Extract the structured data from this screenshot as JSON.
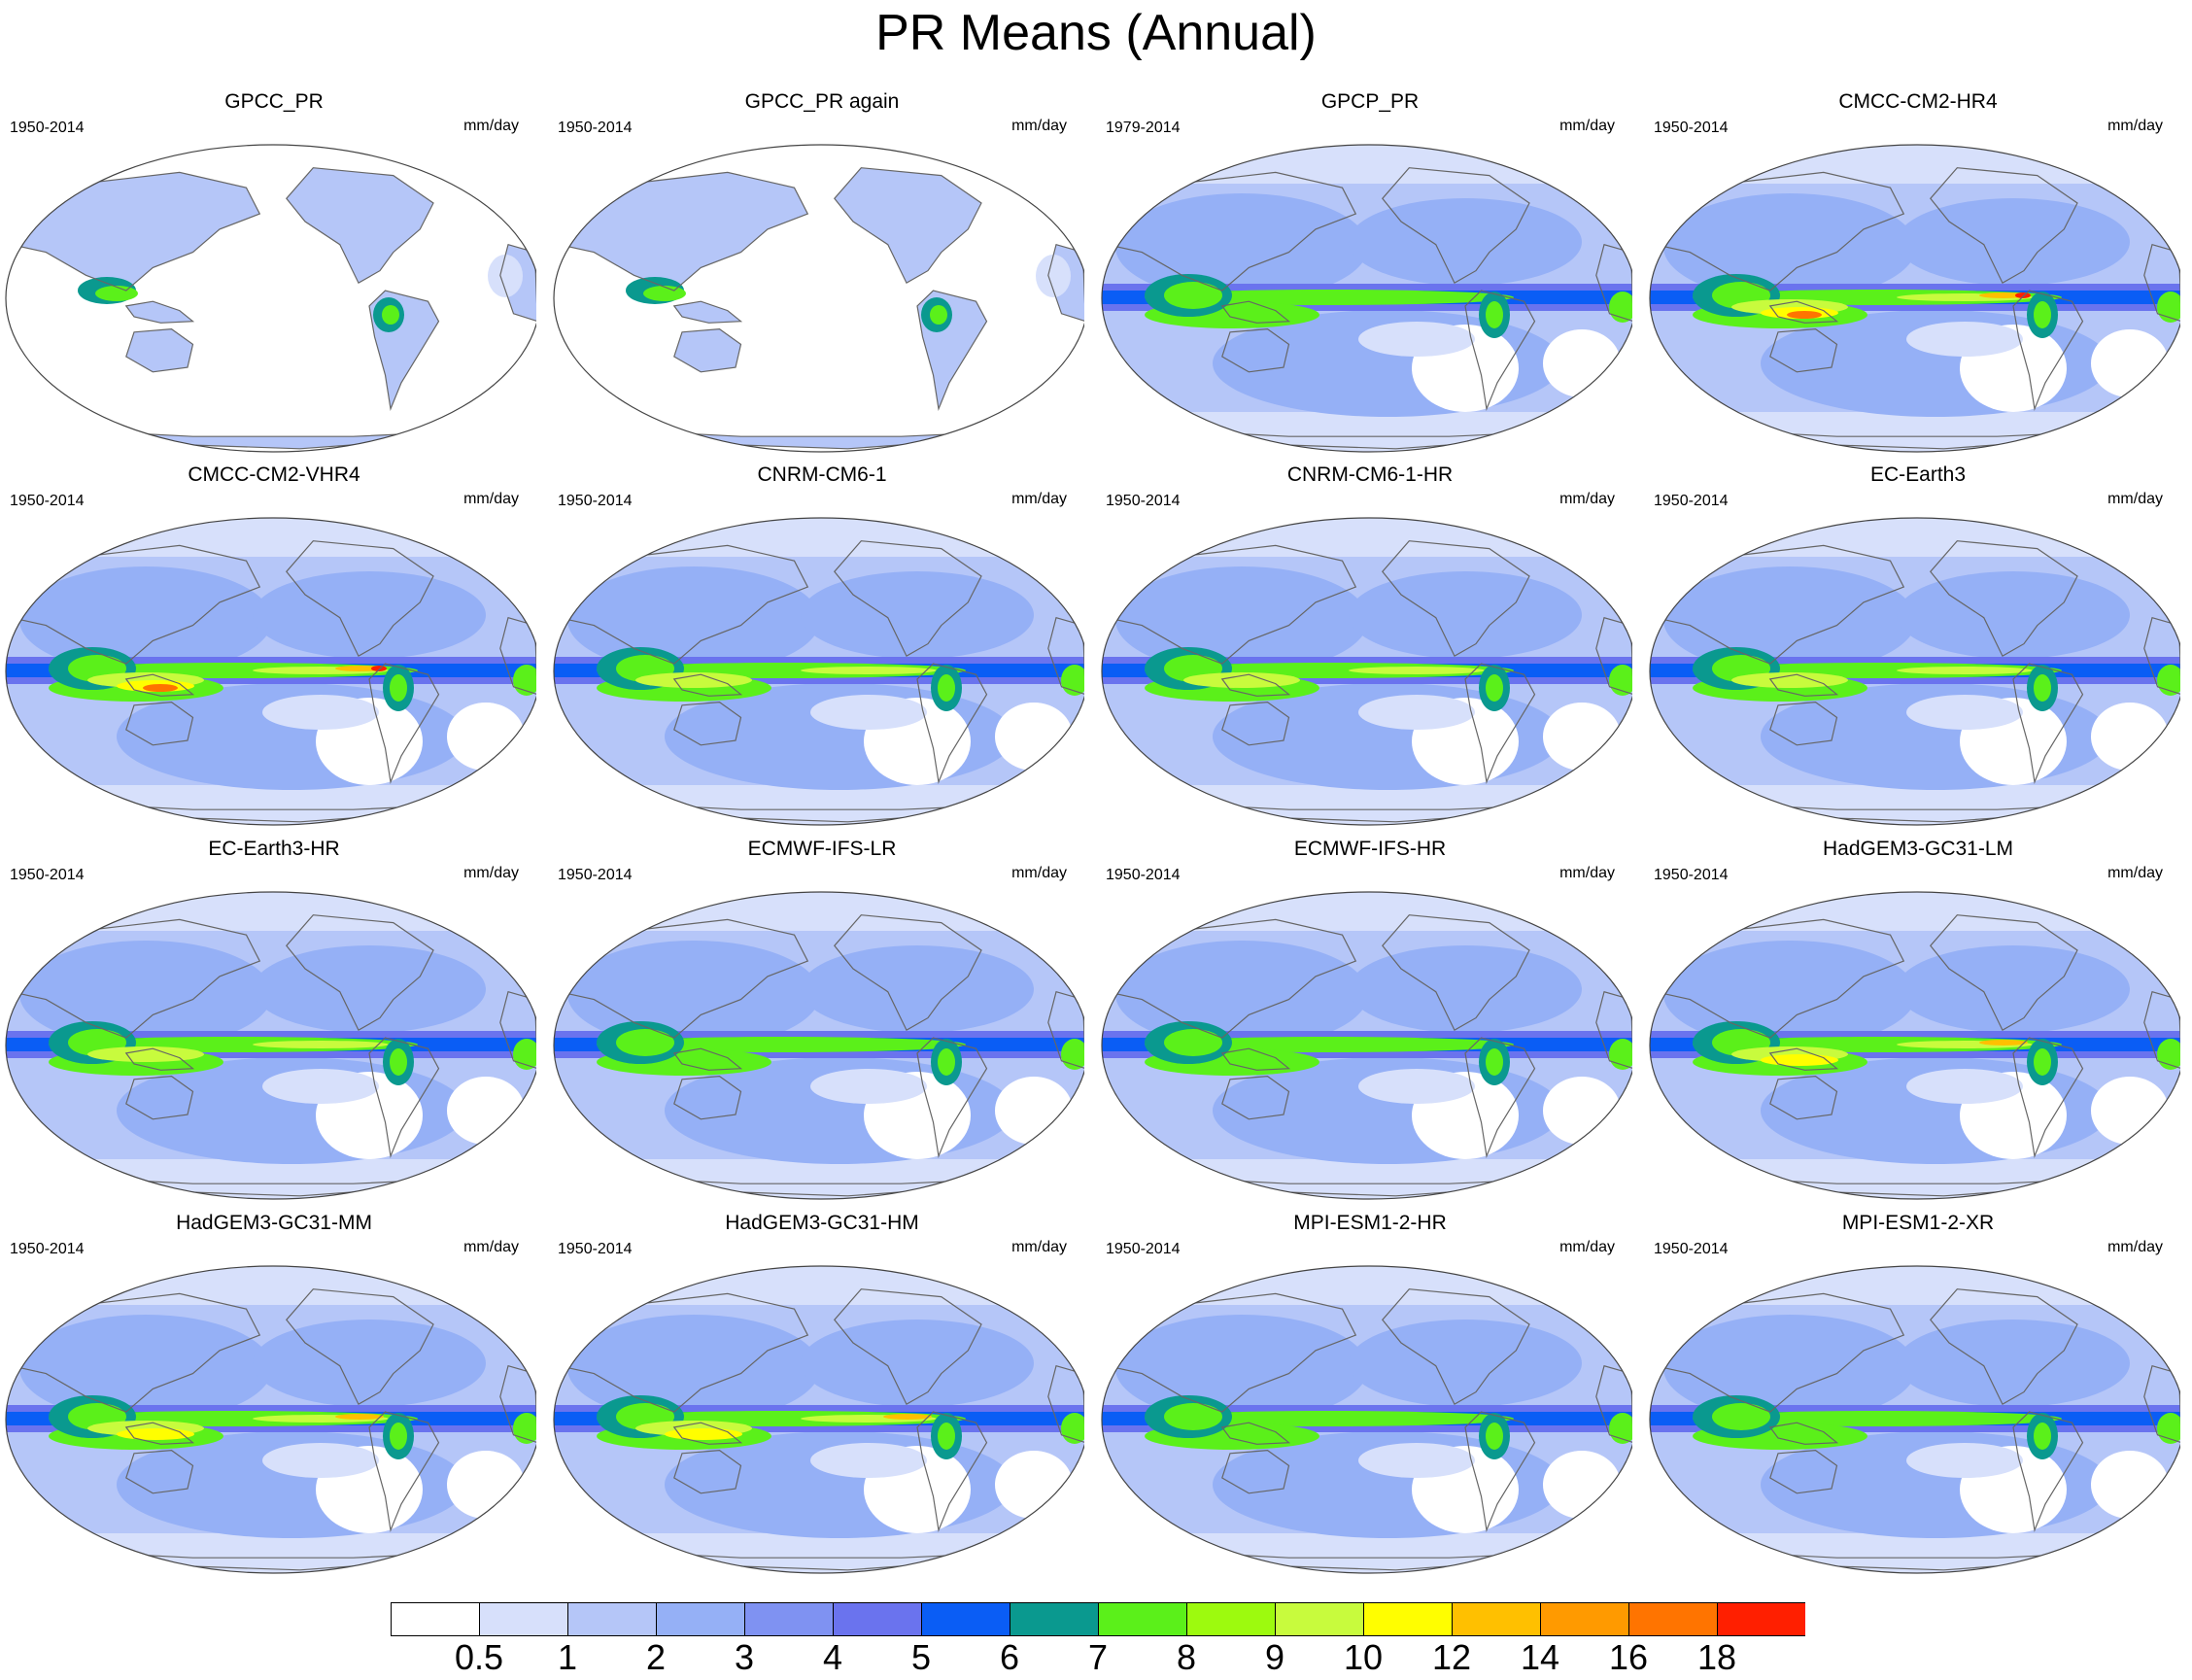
{
  "figure": {
    "title": "PR Means (Annual)"
  },
  "panels": [
    {
      "title": "GPCC_PR",
      "period": "1950-2014",
      "units": "mm/day",
      "ocean_coverage": false,
      "intensity": 0.0
    },
    {
      "title": "GPCC_PR again",
      "period": "1950-2014",
      "units": "mm/day",
      "ocean_coverage": false,
      "intensity": 0.0
    },
    {
      "title": "GPCP_PR",
      "period": "1979-2014",
      "units": "mm/day",
      "ocean_coverage": true,
      "intensity": 0.55
    },
    {
      "title": "CMCC-CM2-HR4",
      "period": "1950-2014",
      "units": "mm/day",
      "ocean_coverage": true,
      "intensity": 0.9
    },
    {
      "title": "CMCC-CM2-VHR4",
      "period": "1950-2014",
      "units": "mm/day",
      "ocean_coverage": true,
      "intensity": 0.85
    },
    {
      "title": "CNRM-CM6-1",
      "period": "1950-2014",
      "units": "mm/day",
      "ocean_coverage": true,
      "intensity": 0.7
    },
    {
      "title": "CNRM-CM6-1-HR",
      "period": "1950-2014",
      "units": "mm/day",
      "ocean_coverage": true,
      "intensity": 0.7
    },
    {
      "title": "EC-Earth3",
      "period": "1950-2014",
      "units": "mm/day",
      "ocean_coverage": true,
      "intensity": 0.6
    },
    {
      "title": "EC-Earth3-HR",
      "period": "1950-2014",
      "units": "mm/day",
      "ocean_coverage": true,
      "intensity": 0.6
    },
    {
      "title": "ECMWF-IFS-LR",
      "period": "1950-2014",
      "units": "mm/day",
      "ocean_coverage": true,
      "intensity": 0.55
    },
    {
      "title": "ECMWF-IFS-HR",
      "period": "1950-2014",
      "units": "mm/day",
      "ocean_coverage": true,
      "intensity": 0.55
    },
    {
      "title": "HadGEM3-GC31-LM",
      "period": "1950-2014",
      "units": "mm/day",
      "ocean_coverage": true,
      "intensity": 0.75
    },
    {
      "title": "HadGEM3-GC31-MM",
      "period": "1950-2014",
      "units": "mm/day",
      "ocean_coverage": true,
      "intensity": 0.8
    },
    {
      "title": "HadGEM3-GC31-HM",
      "period": "1950-2014",
      "units": "mm/day",
      "ocean_coverage": true,
      "intensity": 0.8
    },
    {
      "title": "MPI-ESM1-2-HR",
      "period": "1950-2014",
      "units": "mm/day",
      "ocean_coverage": true,
      "intensity": 0.5
    },
    {
      "title": "MPI-ESM1-2-XR",
      "period": "1950-2014",
      "units": "mm/day",
      "ocean_coverage": true,
      "intensity": 0.5
    }
  ],
  "colorbar": {
    "levels": [
      "0.5",
      "1",
      "2",
      "3",
      "4",
      "5",
      "6",
      "7",
      "8",
      "9",
      "10",
      "12",
      "14",
      "16",
      "18"
    ],
    "colors": [
      "#ffffff",
      "#d7e0fb",
      "#b5c6f8",
      "#95b0f6",
      "#7f92f2",
      "#6a73ee",
      "#0a5df5",
      "#0a998f",
      "#5bf01a",
      "#9dfa0e",
      "#c8fb3d",
      "#fffe00",
      "#ffc000",
      "#ff9a00",
      "#ff7400",
      "#ff1f00"
    ]
  }
}
